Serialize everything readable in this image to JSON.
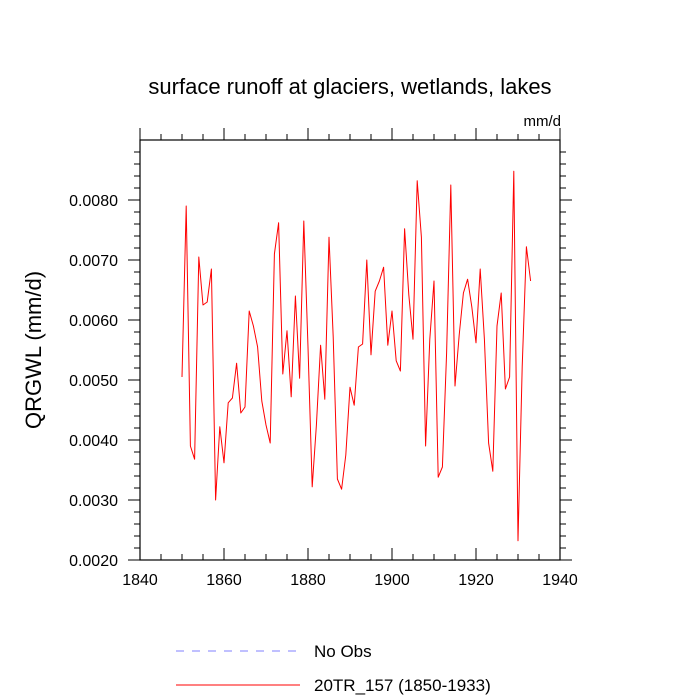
{
  "chart_data": {
    "type": "line",
    "title": "surface runoff at glaciers, wetlands, lakes",
    "units": "mm/d",
    "ylabel": "QRGWL  (mm/d)",
    "xlabel": "",
    "xlim": [
      1840,
      1940
    ],
    "ylim": [
      0.002,
      0.009
    ],
    "x_ticks": [
      1840,
      1860,
      1880,
      1900,
      1920,
      1940
    ],
    "x_tick_labels": [
      "1840",
      "1860",
      "1880",
      "1900",
      "1920",
      "1940"
    ],
    "y_ticks": [
      0.002,
      0.003,
      0.004,
      0.005,
      0.006,
      0.007,
      0.008
    ],
    "y_tick_labels": [
      "0.0020",
      "0.0030",
      "0.0040",
      "0.0050",
      "0.0060",
      "0.0070",
      "0.0080"
    ],
    "series": [
      {
        "name": "20TR_157 (1850-1933)",
        "color": "#ff0000",
        "x": [
          1850,
          1851,
          1852,
          1853,
          1854,
          1855,
          1856,
          1857,
          1858,
          1859,
          1860,
          1861,
          1862,
          1863,
          1864,
          1865,
          1866,
          1867,
          1868,
          1869,
          1870,
          1871,
          1872,
          1873,
          1874,
          1875,
          1876,
          1877,
          1878,
          1879,
          1880,
          1881,
          1882,
          1883,
          1884,
          1885,
          1886,
          1887,
          1888,
          1889,
          1890,
          1891,
          1892,
          1893,
          1894,
          1895,
          1896,
          1897,
          1898,
          1899,
          1900,
          1901,
          1902,
          1903,
          1904,
          1905,
          1906,
          1907,
          1908,
          1909,
          1910,
          1911,
          1912,
          1913,
          1914,
          1915,
          1916,
          1917,
          1918,
          1919,
          1920,
          1921,
          1922,
          1923,
          1924,
          1925,
          1926,
          1927,
          1928,
          1929,
          1930,
          1931,
          1932,
          1933
        ],
        "values": [
          0.00505,
          0.0079,
          0.0039,
          0.00368,
          0.00705,
          0.00625,
          0.0063,
          0.00685,
          0.003,
          0.00422,
          0.00362,
          0.00462,
          0.0047,
          0.00528,
          0.00445,
          0.00455,
          0.00615,
          0.0059,
          0.00555,
          0.00465,
          0.00425,
          0.00395,
          0.0071,
          0.00762,
          0.0051,
          0.00582,
          0.00472,
          0.0064,
          0.00503,
          0.00765,
          0.00555,
          0.00322,
          0.00425,
          0.00558,
          0.00468,
          0.00738,
          0.00572,
          0.00335,
          0.00318,
          0.00375,
          0.00488,
          0.00458,
          0.00555,
          0.0056,
          0.007,
          0.00542,
          0.00648,
          0.00665,
          0.00688,
          0.00558,
          0.00615,
          0.00532,
          0.00515,
          0.00752,
          0.00642,
          0.00568,
          0.00832,
          0.00738,
          0.0039,
          0.00568,
          0.00665,
          0.00338,
          0.00355,
          0.00545,
          0.00825,
          0.0049,
          0.00575,
          0.00645,
          0.00668,
          0.00622,
          0.00562,
          0.00685,
          0.00568,
          0.00395,
          0.00348,
          0.0059,
          0.00645,
          0.00485,
          0.00505,
          0.00848,
          0.00232,
          0.00522,
          0.00722,
          0.00665
        ]
      },
      {
        "name": "No Obs",
        "color": "#8080ff",
        "x": [],
        "values": []
      }
    ],
    "legend": [
      {
        "label": "No Obs",
        "style": "dashed",
        "color": "#8080ff"
      },
      {
        "label": "20TR_157 (1850-1933)",
        "style": "solid",
        "color": "#ff0000"
      }
    ]
  }
}
